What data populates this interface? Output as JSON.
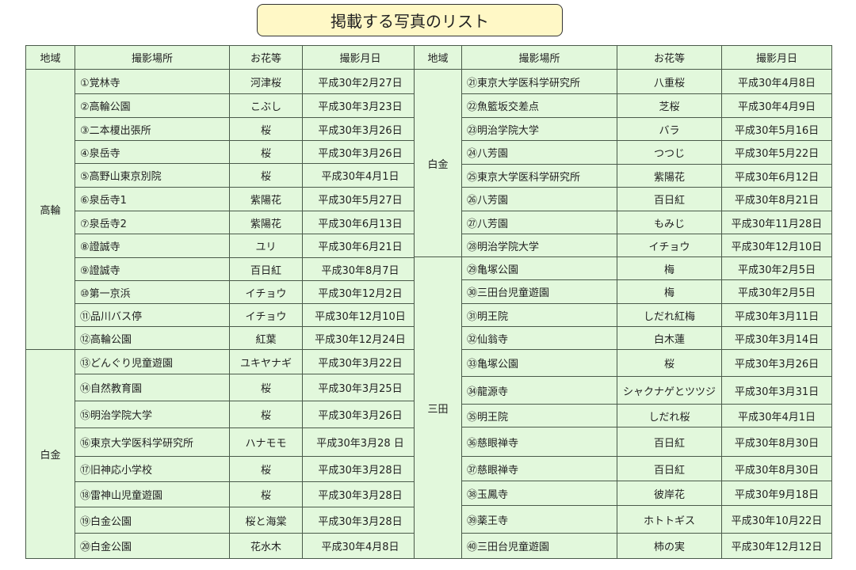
{
  "title": "掲載する写真のリスト",
  "headers": [
    "地域",
    "撮影場所",
    "お花等",
    "撮影月日"
  ],
  "colors": {
    "table_bg": "#e2f8dc",
    "title_bg": "#fff8c6",
    "border": "#4a5a4a"
  },
  "left_table": {
    "groups": [
      {
        "region": "高輪",
        "rows": [
          {
            "place": "①覚林寺",
            "flower": "河津桜",
            "date": "平成30年2月27日"
          },
          {
            "place": "②高輪公園",
            "flower": "こぶし",
            "date": "平成30年3月23日"
          },
          {
            "place": "③二本榎出張所",
            "flower": "桜",
            "date": "平成30年3月26日"
          },
          {
            "place": "④泉岳寺",
            "flower": "桜",
            "date": "平成30年3月26日"
          },
          {
            "place": "⑤高野山東京別院",
            "flower": "桜",
            "date": "平成30年4月1日"
          },
          {
            "place": "⑥泉岳寺1",
            "flower": "紫陽花",
            "date": "平成30年5月27日"
          },
          {
            "place": "⑦泉岳寺2",
            "flower": "紫陽花",
            "date": "平成30年6月13日"
          },
          {
            "place": "⑧證誠寺",
            "flower": "ユリ",
            "date": "平成30年6月21日"
          },
          {
            "place": "⑨證誠寺",
            "flower": "百日紅",
            "date": "平成30年8月7日"
          },
          {
            "place": "⑩第一京浜",
            "flower": "イチョウ",
            "date": "平成30年12月2日"
          },
          {
            "place": "⑪品川バス停",
            "flower": "イチョウ",
            "date": "平成30年12月10日"
          },
          {
            "place": "⑫高輪公園",
            "flower": "紅葉",
            "date": "平成30年12月24日"
          }
        ]
      },
      {
        "region": "白金",
        "rows": [
          {
            "place": "⑬どんぐり児童遊園",
            "flower": "ユキヤナギ",
            "date": "平成30年3月22日"
          },
          {
            "place": "⑭自然教育園",
            "flower": "桜",
            "date": "平成30年3月25日"
          },
          {
            "place": "⑮明治学院大学",
            "flower": "桜",
            "date": "平成30年3月26日"
          },
          {
            "place": "⑯東京大学医科学研究所",
            "flower": "ハナモモ",
            "date": "平成30年3月28 日"
          },
          {
            "place": "⑰旧神応小学校",
            "flower": "桜",
            "date": "平成30年3月28日"
          },
          {
            "place": "⑱雷神山児童遊園",
            "flower": "桜",
            "date": "平成30年3月28日"
          },
          {
            "place": "⑲白金公園",
            "flower": "桜と海棠",
            "date": "平成30年3月28日"
          },
          {
            "place": "⑳白金公園",
            "flower": "花水木",
            "date": "平成30年4月8日"
          }
        ]
      }
    ]
  },
  "right_table": {
    "groups": [
      {
        "region": "白金",
        "rows": [
          {
            "place": "㉑東京大学医科学研究所",
            "flower": "八重桜",
            "date": "平成30年4月8日"
          },
          {
            "place": "㉒魚籃坂交差点",
            "flower": "芝桜",
            "date": "平成30年4月9日"
          },
          {
            "place": "㉓明治学院大学",
            "flower": "バラ",
            "date": "平成30年5月16日"
          },
          {
            "place": "㉔八芳園",
            "flower": "つつじ",
            "date": "平成30年5月22日"
          },
          {
            "place": "㉕東京大学医科学研究所",
            "flower": "紫陽花",
            "date": "平成30年6月12日"
          },
          {
            "place": "㉖八芳園",
            "flower": "百日紅",
            "date": "平成30年8月21日"
          },
          {
            "place": "㉗八芳園",
            "flower": "もみじ",
            "date": "平成30年11月28日"
          },
          {
            "place": "㉘明治学院大学",
            "flower": "イチョウ",
            "date": "平成30年12月10日"
          }
        ]
      },
      {
        "region": "三田",
        "rows": [
          {
            "place": "㉙亀塚公園",
            "flower": "梅",
            "date": "平成30年2月5日"
          },
          {
            "place": "㉚三田台児童遊園",
            "flower": "梅",
            "date": "平成30年2月5日"
          },
          {
            "place": "㉛明王院",
            "flower": "しだれ紅梅",
            "date": "平成30年3月11日"
          },
          {
            "place": "㉜仙翁寺",
            "flower": "白木蓮",
            "date": "平成30年3月14日"
          },
          {
            "place": "㉝亀塚公園",
            "flower": "桜",
            "date": "平成30年3月26日"
          },
          {
            "place": "㉞龍源寺",
            "flower": "シャクナゲとツツジ",
            "date": "平成30年3月31日"
          },
          {
            "place": "㉟明王院",
            "flower": "しだれ桜",
            "date": "平成30年4月1日"
          },
          {
            "place": "㊱慈眼禅寺",
            "flower": "百日紅",
            "date": "平成30年8月30日"
          },
          {
            "place": "㊲慈眼禅寺",
            "flower": "百日紅",
            "date": "平成30年8月30日"
          },
          {
            "place": "㊳玉鳳寺",
            "flower": "彼岸花",
            "date": "平成30年9月18日"
          },
          {
            "place": "㊴薬王寺",
            "flower": "ホトトギス",
            "date": "平成30年10月22日"
          },
          {
            "place": "㊵三田台児童遊園",
            "flower": "柿の実",
            "date": "平成30年12月12日"
          }
        ]
      }
    ]
  }
}
